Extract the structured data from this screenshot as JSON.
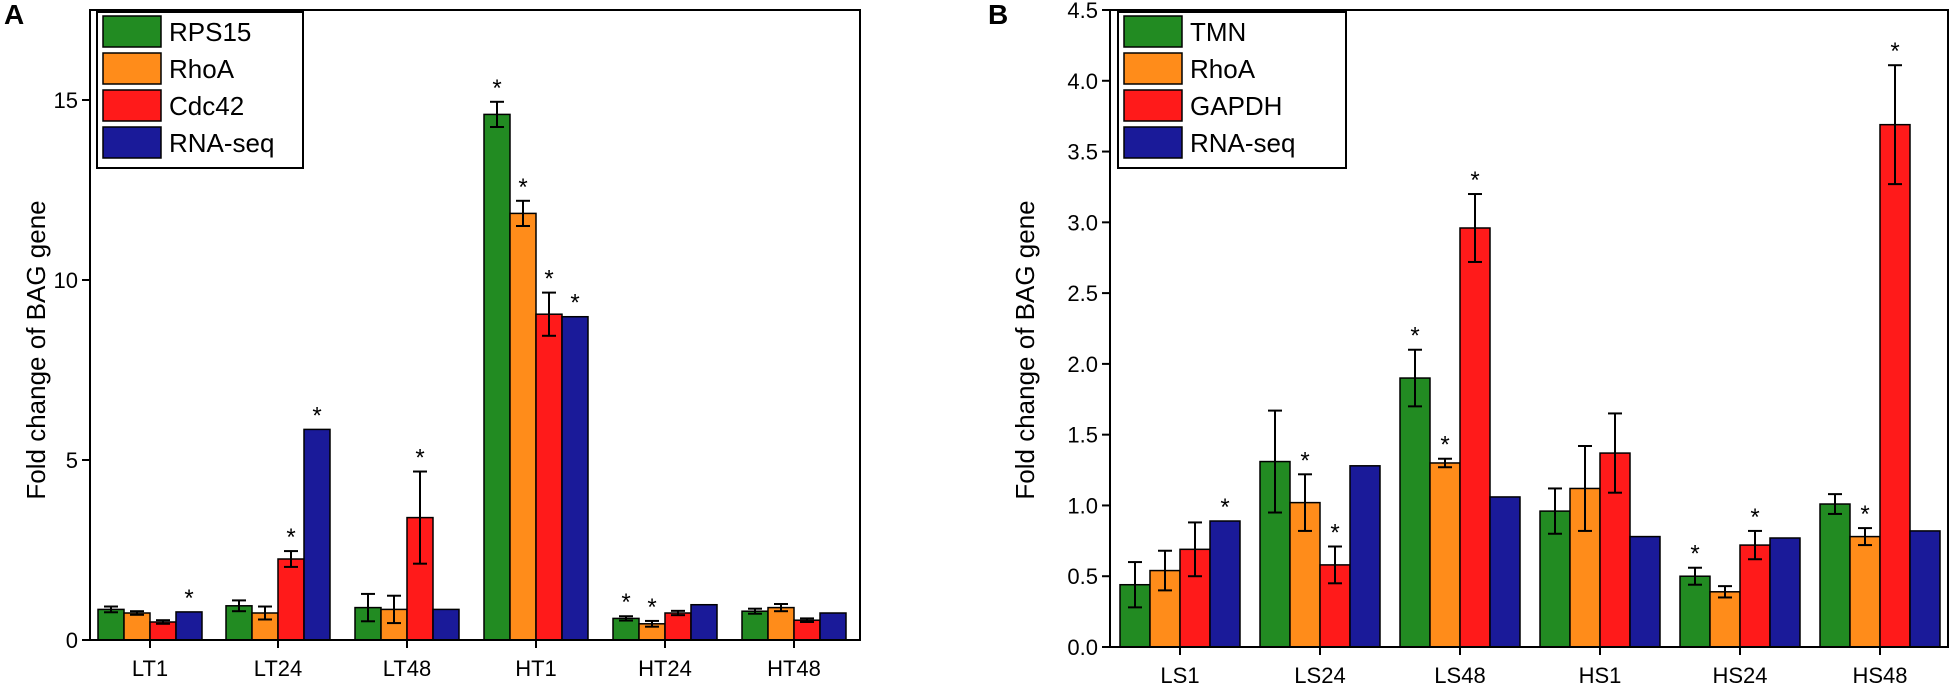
{
  "colors": {
    "green": "#228B22",
    "orange": "#FF8C1A",
    "red": "#FF1A1A",
    "navy": "#1A1A99"
  },
  "chart_data": [
    {
      "panel": "A",
      "type": "bar",
      "ylabel": "Fold change of BAG gene",
      "ylim": [
        0,
        17.5
      ],
      "yticks": [
        0,
        5,
        10,
        15
      ],
      "legend_position": "top-left",
      "categories": [
        "LT1",
        "LT24",
        "LT48",
        "HT1",
        "HT24",
        "HT48"
      ],
      "series": [
        {
          "name": "RPS15",
          "color": "#228B22",
          "values": [
            0.85,
            0.95,
            0.9,
            14.6,
            0.6,
            0.8
          ],
          "errors": [
            0.08,
            0.15,
            0.38,
            0.35,
            0.06,
            0.07
          ],
          "sig": [
            false,
            false,
            false,
            true,
            true,
            false
          ]
        },
        {
          "name": "RhoA",
          "color": "#FF8C1A",
          "values": [
            0.75,
            0.75,
            0.85,
            11.85,
            0.45,
            0.9
          ],
          "errors": [
            0.05,
            0.18,
            0.38,
            0.35,
            0.08,
            0.1
          ],
          "sig": [
            false,
            false,
            false,
            true,
            true,
            false
          ]
        },
        {
          "name": "Cdc42",
          "color": "#FF1A1A",
          "values": [
            0.5,
            2.25,
            3.4,
            9.05,
            0.75,
            0.55
          ],
          "errors": [
            0.05,
            0.22,
            1.28,
            0.6,
            0.06,
            0.05
          ],
          "sig": [
            false,
            true,
            true,
            true,
            false,
            false
          ]
        },
        {
          "name": "RNA-seq",
          "color": "#1A1A99",
          "values": [
            0.78,
            5.85,
            0.85,
            8.98,
            0.98,
            0.75
          ],
          "errors": [
            0,
            0,
            0,
            0,
            0,
            0
          ],
          "sig": [
            true,
            true,
            false,
            true,
            false,
            false
          ]
        }
      ]
    },
    {
      "panel": "B",
      "type": "bar",
      "ylabel": "Fold change of BAG gene",
      "ylim": [
        0,
        4.5
      ],
      "yticks": [
        "0.0",
        "0.5",
        "1.0",
        "1.5",
        "2.0",
        "2.5",
        "3.0",
        "3.5",
        "4.0",
        "4.5"
      ],
      "legend_position": "top-left",
      "categories": [
        "LS1",
        "LS24",
        "LS48",
        "HS1",
        "HS24",
        "HS48"
      ],
      "series": [
        {
          "name": "TMN",
          "color": "#228B22",
          "values": [
            0.44,
            1.31,
            1.9,
            0.96,
            0.5,
            1.01
          ],
          "errors": [
            0.16,
            0.36,
            0.2,
            0.16,
            0.06,
            0.07
          ],
          "sig": [
            false,
            false,
            true,
            false,
            true,
            false
          ]
        },
        {
          "name": "RhoA",
          "color": "#FF8C1A",
          "values": [
            0.54,
            1.02,
            1.3,
            1.12,
            0.39,
            0.78
          ],
          "errors": [
            0.14,
            0.2,
            0.03,
            0.3,
            0.04,
            0.06
          ],
          "sig": [
            false,
            true,
            true,
            false,
            false,
            true
          ]
        },
        {
          "name": "GAPDH",
          "color": "#FF1A1A",
          "values": [
            0.69,
            0.58,
            2.96,
            1.37,
            0.72,
            3.69
          ],
          "errors": [
            0.19,
            0.13,
            0.24,
            0.28,
            0.1,
            0.42
          ],
          "sig": [
            false,
            true,
            true,
            false,
            true,
            true
          ]
        },
        {
          "name": "RNA-seq",
          "color": "#1A1A99",
          "values": [
            0.89,
            1.28,
            1.06,
            0.78,
            0.77,
            0.82
          ],
          "errors": [
            0,
            0,
            0,
            0,
            0,
            0
          ],
          "sig": [
            true,
            false,
            false,
            false,
            false,
            false
          ]
        }
      ]
    }
  ]
}
